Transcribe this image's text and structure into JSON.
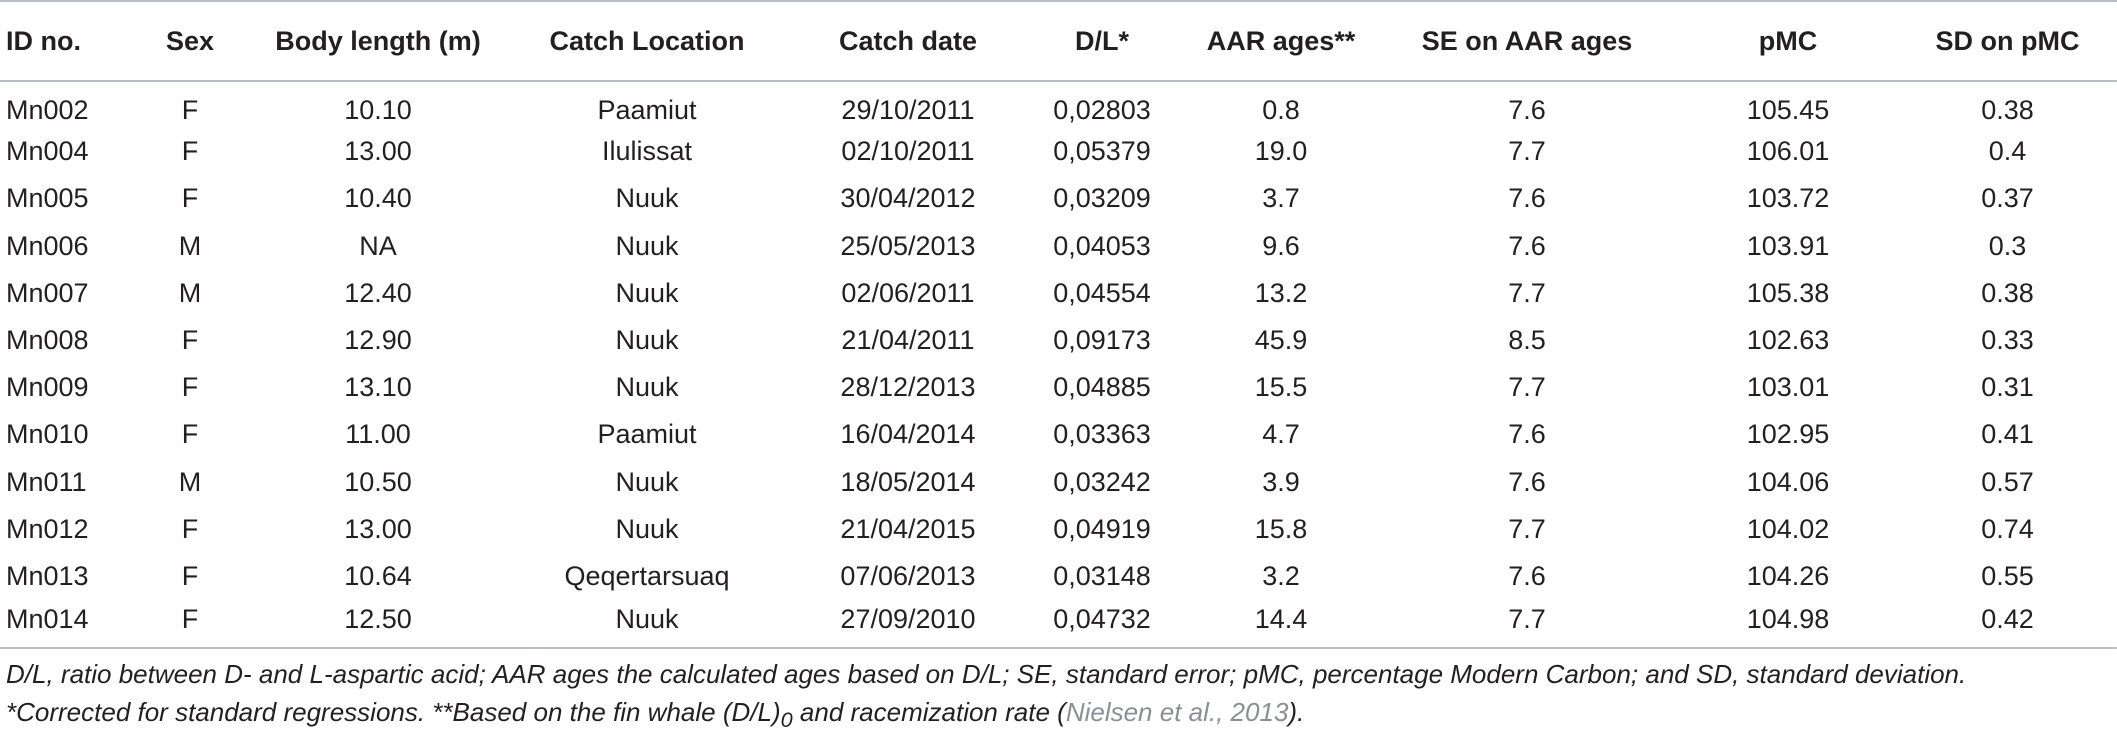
{
  "table": {
    "headers": [
      "ID no.",
      "Sex",
      "Body length (m)",
      "Catch Location",
      "Catch date",
      "D/L*",
      "AAR ages**",
      "SE on AAR ages",
      "pMC",
      "SD on pMC"
    ],
    "rows": [
      [
        "Mn002",
        "F",
        "10.10",
        "Paamiut",
        "29/10/2011",
        "0,02803",
        "0.8",
        "7.6",
        "105.45",
        "0.38"
      ],
      [
        "Mn004",
        "F",
        "13.00",
        "Ilulissat",
        "02/10/2011",
        "0,05379",
        "19.0",
        "7.7",
        "106.01",
        "0.4"
      ],
      [
        "Mn005",
        "F",
        "10.40",
        "Nuuk",
        "30/04/2012",
        "0,03209",
        "3.7",
        "7.6",
        "103.72",
        "0.37"
      ],
      [
        "Mn006",
        "M",
        "NA",
        "Nuuk",
        "25/05/2013",
        "0,04053",
        "9.6",
        "7.6",
        "103.91",
        "0.3"
      ],
      [
        "Mn007",
        "M",
        "12.40",
        "Nuuk",
        "02/06/2011",
        "0,04554",
        "13.2",
        "7.7",
        "105.38",
        "0.38"
      ],
      [
        "Mn008",
        "F",
        "12.90",
        "Nuuk",
        "21/04/2011",
        "0,09173",
        "45.9",
        "8.5",
        "102.63",
        "0.33"
      ],
      [
        "Mn009",
        "F",
        "13.10",
        "Nuuk",
        "28/12/2013",
        "0,04885",
        "15.5",
        "7.7",
        "103.01",
        "0.31"
      ],
      [
        "Mn010",
        "F",
        "11.00",
        "Paamiut",
        "16/04/2014",
        "0,03363",
        "4.7",
        "7.6",
        "102.95",
        "0.41"
      ],
      [
        "Mn011",
        "M",
        "10.50",
        "Nuuk",
        "18/05/2014",
        "0,03242",
        "3.9",
        "7.6",
        "104.06",
        "0.57"
      ],
      [
        "Mn012",
        "F",
        "13.00",
        "Nuuk",
        "21/04/2015",
        "0,04919",
        "15.8",
        "7.7",
        "104.02",
        "0.74"
      ],
      [
        "Mn013",
        "F",
        "10.64",
        "Qeqertarsuaq",
        "07/06/2013",
        "0,03148",
        "3.2",
        "7.6",
        "104.26",
        "0.55"
      ],
      [
        "Mn014",
        "F",
        "12.50",
        "Nuuk",
        "27/09/2010",
        "0,04732",
        "14.4",
        "7.7",
        "104.98",
        "0.42"
      ]
    ]
  },
  "footnotes": {
    "line1": "D/L, ratio between D- and L-aspartic acid; AAR ages the calculated ages based on D/L; SE, standard error; pMC, percentage Modern Carbon; and SD, standard deviation.",
    "line2_prefix": "*Corrected for standard regressions. **Based on the fin whale (D/L)",
    "line2_subscript": "0",
    "line2_middle": " and racemization rate (",
    "line2_citation": "Nielsen et al., 2013",
    "line2_suffix": ")."
  }
}
